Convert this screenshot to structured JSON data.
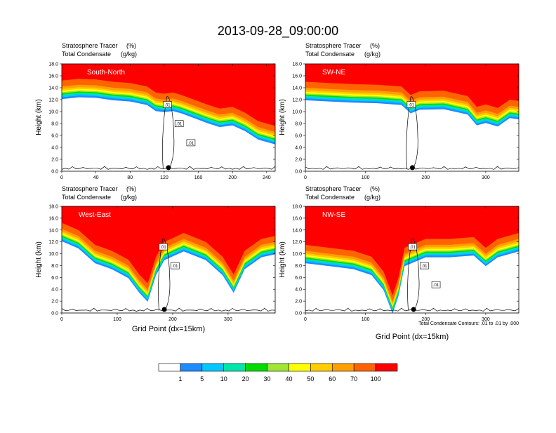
{
  "figure": {
    "title": "2013-09-28_09:00:00",
    "contour_note": "Total Condensate Contours: .01 to .01 by .000"
  },
  "chart_data": [
    {
      "type": "heatmap",
      "panel": "top-left",
      "label": "South-North",
      "subtitle_left": "Stratosphere Tracer",
      "subtitle_left_unit": "(%)",
      "subtitle_left2": "Total Condensate",
      "subtitle_left2_unit": "(g/kg)",
      "ylabel": "Height (km)",
      "xlabel": "",
      "xlim": [
        0,
        250
      ],
      "ylim": [
        0,
        18
      ],
      "xticks": [
        0,
        40,
        80,
        120,
        160,
        200,
        240
      ],
      "yticks": [
        0.0,
        2.0,
        4.0,
        6.0,
        8.0,
        10.0,
        12.0,
        14.0,
        16.0,
        18.0
      ],
      "marker_x": 125,
      "contour_labels": [
        ".01",
        ".01",
        ".01"
      ],
      "tropopause_km": [
        [
          0,
          15.2
        ],
        [
          20,
          15.5
        ],
        [
          40,
          15.4
        ],
        [
          60,
          15.0
        ],
        [
          80,
          14.8
        ],
        [
          100,
          14.2
        ],
        [
          110,
          13.2
        ],
        [
          120,
          13.0
        ],
        [
          130,
          13.2
        ],
        [
          140,
          12.8
        ],
        [
          155,
          12.0
        ],
        [
          170,
          11.2
        ],
        [
          185,
          10.5
        ],
        [
          200,
          10.8
        ],
        [
          215,
          9.8
        ],
        [
          230,
          8.4
        ],
        [
          250,
          7.6
        ]
      ]
    },
    {
      "type": "heatmap",
      "panel": "top-right",
      "label": "SW-NE",
      "subtitle_left": "Stratosphere Tracer",
      "subtitle_left_unit": "(%)",
      "subtitle_left2": "Total Condensate",
      "subtitle_left2_unit": "(g/kg)",
      "ylabel": "Height (km)",
      "xlabel": "",
      "xlim": [
        0,
        355
      ],
      "ylim": [
        0,
        18
      ],
      "xticks": [
        0,
        100,
        200,
        300
      ],
      "yticks": [
        0.0,
        2.0,
        4.0,
        6.0,
        8.0,
        10.0,
        12.0,
        14.0,
        16.0,
        18.0
      ],
      "marker_x": 178,
      "contour_labels": [
        ".01"
      ],
      "tropopause_km": [
        [
          0,
          15.0
        ],
        [
          40,
          14.8
        ],
        [
          80,
          14.6
        ],
        [
          120,
          14.5
        ],
        [
          160,
          14.2
        ],
        [
          175,
          12.8
        ],
        [
          190,
          13.4
        ],
        [
          230,
          13.5
        ],
        [
          270,
          12.6
        ],
        [
          285,
          10.8
        ],
        [
          300,
          11.2
        ],
        [
          320,
          10.6
        ],
        [
          340,
          12.0
        ],
        [
          355,
          11.8
        ]
      ]
    },
    {
      "type": "heatmap",
      "panel": "bottom-left",
      "label": "West-East",
      "subtitle_left": "Stratosphere Tracer",
      "subtitle_left_unit": "(%)",
      "subtitle_left2": "Total Condensate",
      "subtitle_left2_unit": "(g/kg)",
      "ylabel": "Height (km)",
      "xlabel": "Grid Point (dx=15km)",
      "xlim": [
        0,
        385
      ],
      "ylim": [
        0,
        18
      ],
      "xticks": [
        0,
        100,
        200,
        300
      ],
      "yticks": [
        0.0,
        2.0,
        4.0,
        6.0,
        8.0,
        10.0,
        12.0,
        14.0,
        16.0,
        18.0
      ],
      "marker_x": 185,
      "contour_labels": [
        ".01",
        ".01"
      ],
      "tropopause_km": [
        [
          0,
          15.2
        ],
        [
          30,
          14.0
        ],
        [
          60,
          11.5
        ],
        [
          90,
          10.5
        ],
        [
          120,
          9.0
        ],
        [
          140,
          6.5
        ],
        [
          155,
          5.0
        ],
        [
          170,
          9.5
        ],
        [
          185,
          12.0
        ],
        [
          220,
          13.5
        ],
        [
          260,
          12.0
        ],
        [
          290,
          9.5
        ],
        [
          310,
          6.5
        ],
        [
          330,
          10.5
        ],
        [
          360,
          12.5
        ],
        [
          385,
          13.0
        ]
      ]
    },
    {
      "type": "heatmap",
      "panel": "bottom-right",
      "label": "NW-SE",
      "subtitle_left": "Stratosphere Tracer",
      "subtitle_left_unit": "(%)",
      "subtitle_left2": "Total Condensate",
      "subtitle_left2_unit": "(g/kg)",
      "ylabel": "Height (km)",
      "xlabel": "Grid Point (dx=15km)",
      "xlim": [
        0,
        355
      ],
      "ylim": [
        0,
        18
      ],
      "xticks": [
        0,
        100,
        200,
        300
      ],
      "yticks": [
        0.0,
        2.0,
        4.0,
        6.0,
        8.0,
        10.0,
        12.0,
        14.0,
        16.0,
        18.0
      ],
      "marker_x": 180,
      "contour_labels": [
        ".01",
        ".01",
        ".01"
      ],
      "tropopause_km": [
        [
          0,
          11.5
        ],
        [
          40,
          11.0
        ],
        [
          80,
          10.5
        ],
        [
          110,
          9.5
        ],
        [
          130,
          7.0
        ],
        [
          145,
          3.0
        ],
        [
          155,
          6.0
        ],
        [
          165,
          11.0
        ],
        [
          200,
          12.5
        ],
        [
          240,
          12.5
        ],
        [
          280,
          12.8
        ],
        [
          300,
          11.0
        ],
        [
          320,
          12.5
        ],
        [
          355,
          13.5
        ]
      ]
    }
  ],
  "colorbar": {
    "labels": [
      "1",
      "5",
      "10",
      "20",
      "30",
      "40",
      "50",
      "60",
      "70",
      "100"
    ],
    "colors": [
      "#ffffff",
      "#1e8bff",
      "#00c8ff",
      "#00e6aa",
      "#00dc00",
      "#a0e632",
      "#ffff00",
      "#ffcd00",
      "#ffa000",
      "#ff6400",
      "#ff0000"
    ]
  }
}
